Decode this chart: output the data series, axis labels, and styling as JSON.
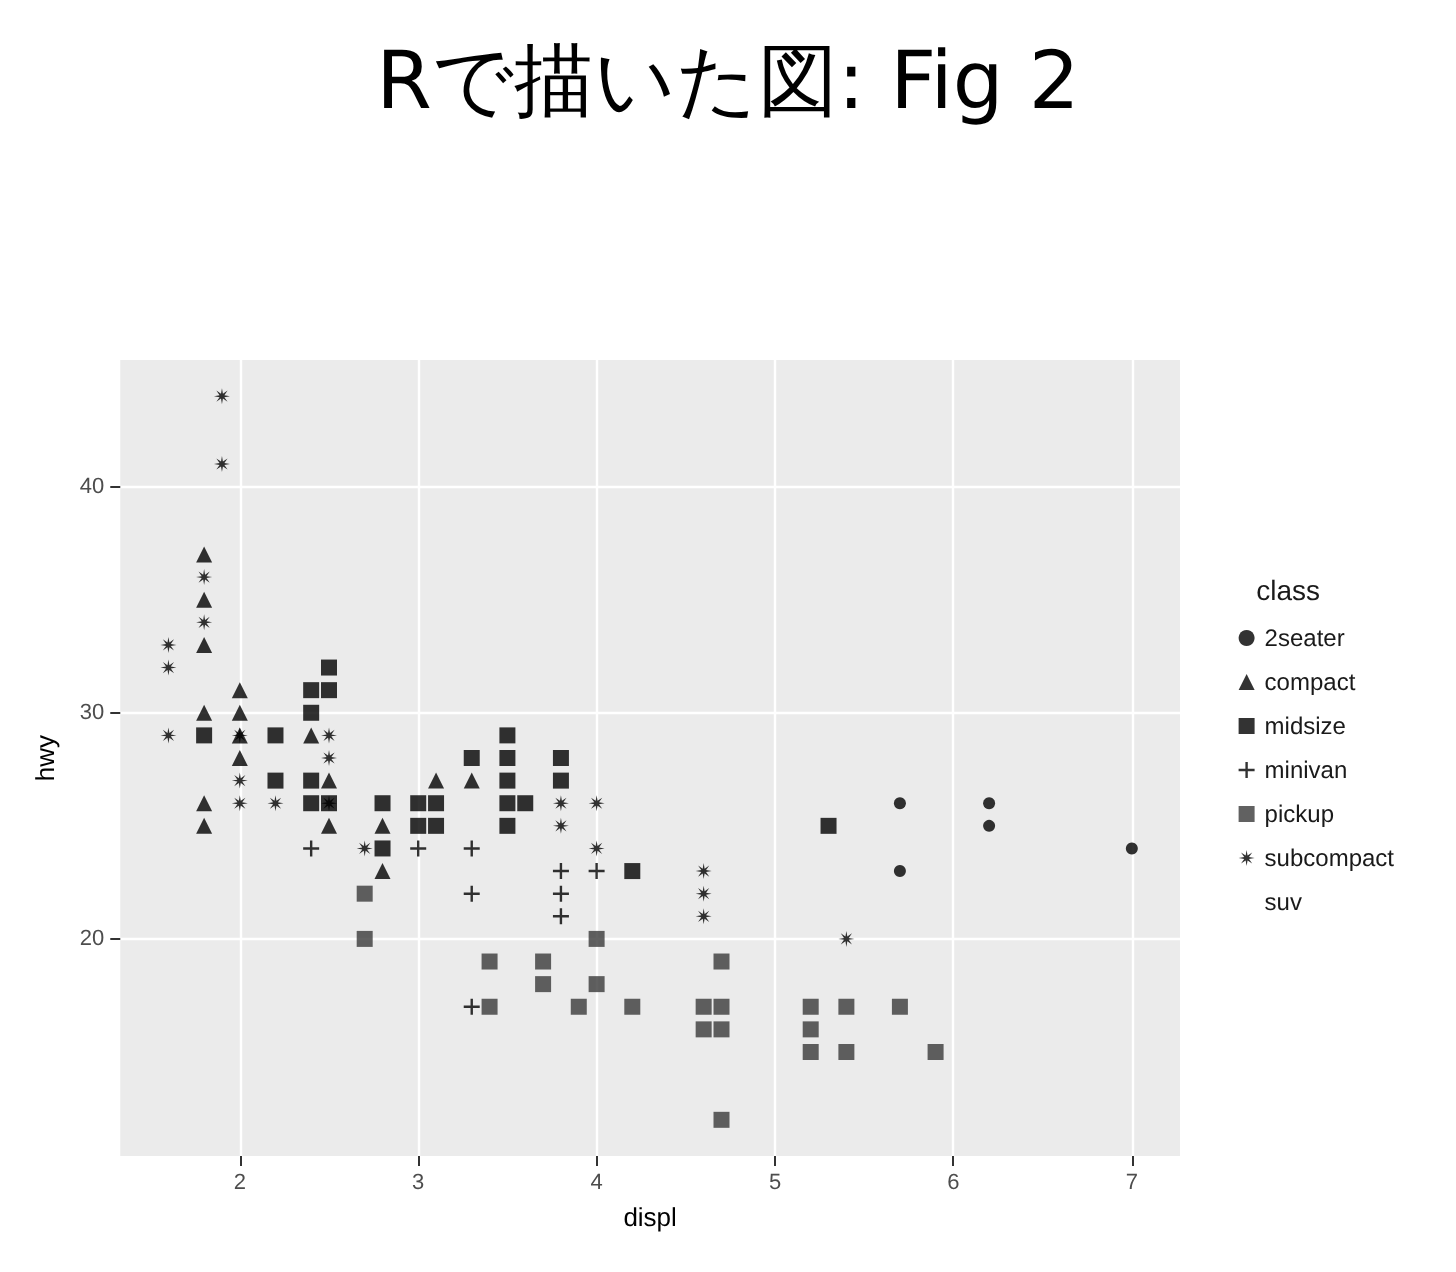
{
  "chart_data": {
    "type": "scatter",
    "title": "Rで描いた図: Fig 2",
    "xlabel": "displ",
    "ylabel": "hwy",
    "legend_title": "class",
    "legend": "right",
    "grid": true,
    "xlim": [
      1.33,
      7.27
    ],
    "xticks": [
      2,
      3,
      4,
      5,
      6,
      7
    ],
    "ylim": [
      10.4,
      45.6
    ],
    "yticks": [
      20,
      30,
      40
    ],
    "series": [
      {
        "name": "2seater",
        "color": "#000000",
        "marker": "circle",
        "x": [
          5.7,
          5.7,
          6.2,
          6.2,
          7.0
        ],
        "values": [
          26,
          23,
          26,
          25,
          24
        ]
      },
      {
        "name": "compact",
        "color": "#000000",
        "marker": "triangle",
        "x": [
          1.8,
          1.8,
          1.8,
          1.8,
          1.8,
          1.8,
          2.0,
          2.0,
          2.0,
          2.0,
          2.4,
          2.5,
          2.5,
          2.8,
          2.8,
          3.1,
          3.3
        ],
        "values": [
          37,
          35,
          33,
          30,
          26,
          25,
          31,
          30,
          29,
          28,
          29,
          27,
          25,
          25,
          23,
          27,
          27
        ]
      },
      {
        "name": "midsize",
        "color": "#000000",
        "marker": "square",
        "x": [
          1.8,
          2.0,
          2.2,
          2.2,
          2.4,
          2.4,
          2.4,
          2.4,
          2.5,
          2.5,
          2.5,
          2.8,
          2.8,
          3.0,
          3.0,
          3.1,
          3.1,
          3.3,
          3.5,
          3.5,
          3.5,
          3.5,
          3.5,
          3.6,
          3.8,
          3.8,
          4.2,
          5.3
        ],
        "values": [
          29,
          null,
          29,
          27,
          31,
          30,
          27,
          26,
          32,
          31,
          26,
          26,
          24,
          26,
          25,
          26,
          25,
          28,
          29,
          28,
          27,
          26,
          25,
          26,
          28,
          27,
          23,
          25
        ]
      },
      {
        "name": "minivan",
        "color": "#000000",
        "marker": "cross",
        "x": [
          2.4,
          3.0,
          3.3,
          3.3,
          3.3,
          3.8,
          3.8,
          3.8,
          4.0
        ],
        "values": [
          24,
          24,
          24,
          22,
          17,
          23,
          22,
          21,
          23
        ]
      },
      {
        "name": "pickup",
        "color": "#3a3a3a",
        "marker": "square",
        "x": [
          2.7,
          2.7,
          3.4,
          3.4,
          3.7,
          3.7,
          3.9,
          4.0,
          4.0,
          4.2,
          4.6,
          4.6,
          4.7,
          4.7,
          4.7,
          4.7,
          5.2,
          5.2,
          5.2,
          5.4,
          5.4,
          5.7,
          5.9
        ],
        "values": [
          22,
          20,
          19,
          17,
          19,
          18,
          17,
          20,
          18,
          17,
          17,
          16,
          19,
          17,
          16,
          12,
          17,
          16,
          15,
          17,
          15,
          17,
          15
        ]
      },
      {
        "name": "subcompact",
        "color": "#000000",
        "marker": "star",
        "x": [
          1.6,
          1.6,
          1.6,
          1.8,
          1.8,
          1.9,
          1.9,
          2.0,
          2.0,
          2.0,
          2.2,
          2.5,
          2.5,
          2.5,
          2.7,
          3.8,
          3.8,
          4.0,
          4.0,
          4.6,
          4.6,
          4.6,
          5.4
        ],
        "values": [
          33,
          32,
          29,
          36,
          34,
          44,
          41,
          29,
          27,
          26,
          26,
          29,
          28,
          26,
          24,
          26,
          25,
          26,
          24,
          23,
          22,
          21,
          20
        ]
      },
      {
        "name": "suv",
        "color": "#000000",
        "marker": "none"
      }
    ]
  }
}
